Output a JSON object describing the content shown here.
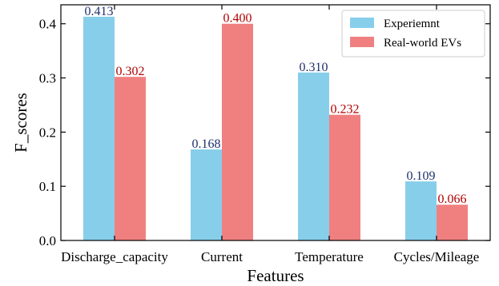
{
  "chart_data": {
    "type": "bar",
    "title": "",
    "xlabel": "Features",
    "ylabel": "F_scores",
    "categories": [
      "Discharge_capacity",
      "Current",
      "Temperature",
      "Cycles/Mileage"
    ],
    "series": [
      {
        "name": "Experiemnt",
        "values": [
          0.413,
          0.168,
          0.31,
          0.109
        ],
        "labels": [
          "0.413",
          "0.168",
          "0.310",
          "0.109"
        ],
        "color": "#87CEEB",
        "label_color": "#1F2F6B"
      },
      {
        "name": "Real-world EVs",
        "values": [
          0.302,
          0.4,
          0.232,
          0.066
        ],
        "labels": [
          "0.302",
          "0.400",
          "0.232",
          "0.066"
        ],
        "color": "#F08080",
        "label_color": "#B00000"
      }
    ],
    "ylim": [
      0,
      0.435
    ],
    "yticks": [
      0.0,
      0.1,
      0.2,
      0.3,
      0.4
    ],
    "ytick_labels": [
      "0.0",
      "0.1",
      "0.2",
      "0.3",
      "0.4"
    ],
    "grid": false,
    "legend_position": "top-right"
  }
}
